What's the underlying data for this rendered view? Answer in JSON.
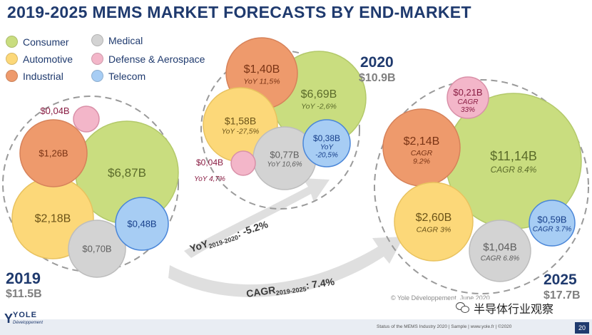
{
  "title": "2019-2025 MEMS MARKET FORECASTS BY END-MARKET",
  "legend": [
    {
      "label": "Consumer",
      "color": "#c9dd7f"
    },
    {
      "label": "Automotive",
      "color": "#fcd879"
    },
    {
      "label": "Industrial",
      "color": "#ee9a6c"
    },
    {
      "label": "Medical",
      "color": "#d3d3d3"
    },
    {
      "label": "Defense & Aerospace",
      "color": "#f3b6c9"
    },
    {
      "label": "Telecom",
      "color": "#a7cdf4"
    }
  ],
  "years": [
    {
      "year": "2019",
      "total": "$11.5B",
      "bubbles": [
        {
          "segment": "Consumer",
          "value": "$6,87B",
          "note": ""
        },
        {
          "segment": "Automotive",
          "value": "$2,18B",
          "note": ""
        },
        {
          "segment": "Industrial",
          "value": "$1,26B",
          "note": ""
        },
        {
          "segment": "Medical",
          "value": "$0,70B",
          "note": ""
        },
        {
          "segment": "Telecom",
          "value": "$0,48B",
          "note": ""
        },
        {
          "segment": "Defense & Aerospace",
          "value": "$0,04B",
          "note": ""
        }
      ]
    },
    {
      "year": "2020",
      "total": "$10.9B",
      "bubbles": [
        {
          "segment": "Consumer",
          "value": "$6,69B",
          "note": "YoY -2,6%"
        },
        {
          "segment": "Industrial",
          "value": "$1,40B",
          "note": "YoY 11,5%"
        },
        {
          "segment": "Automotive",
          "value": "$1,58B",
          "note": "YoY -27,5%"
        },
        {
          "segment": "Medical",
          "value": "$0,77B",
          "note": "YoY 10,6%"
        },
        {
          "segment": "Telecom",
          "value": "$0,38B",
          "note": "YoY",
          "note2": "-20,5%"
        },
        {
          "segment": "Defense & Aerospace",
          "value": "$0,04B",
          "note": "YoY 4,7%"
        }
      ]
    },
    {
      "year": "2025",
      "total": "$17.7B",
      "bubbles": [
        {
          "segment": "Consumer",
          "value": "$11,14B",
          "note": "CAGR 8.4%"
        },
        {
          "segment": "Industrial",
          "value": "$2,14B",
          "note": "CAGR",
          "note2": "9.2%"
        },
        {
          "segment": "Automotive",
          "value": "$2,60B",
          "note": "CAGR 3%"
        },
        {
          "segment": "Medical",
          "value": "$1,04B",
          "note": "CAGR 6.8%"
        },
        {
          "segment": "Telecom",
          "value": "$0,59B",
          "note": "CAGR 3.7%"
        },
        {
          "segment": "Defense & Aerospace",
          "value": "$0,21B",
          "note": "CAGR",
          "note2": "33%"
        }
      ]
    }
  ],
  "arrows": [
    {
      "label": "YoY",
      "sub": "2019-2020",
      "value": ": -5.2%"
    },
    {
      "label": "CAGR",
      "sub": "2019-2025",
      "value": ": 7.4%"
    }
  ],
  "copyright": "© Yole Développement, June 2020",
  "footer": "Status of the MEMS Industry 2020 | Sample | www.yole.fr | ©2020",
  "page_number": "20",
  "logo": {
    "mark": "Y",
    "name": "YOLE",
    "sub": "Développement"
  },
  "watermark": "半导体行业观察"
}
